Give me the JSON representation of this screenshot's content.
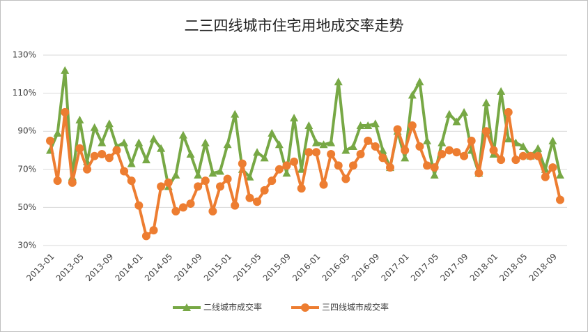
{
  "chart_data": {
    "type": "line",
    "title": "二三四线城市住宅用地成交率走势",
    "categories": [
      "2013-01",
      null,
      null,
      null,
      "2013-05",
      null,
      null,
      null,
      "2013-09",
      null,
      null,
      null,
      "2014-01",
      null,
      null,
      null,
      "2014-05",
      null,
      null,
      null,
      "2014-09",
      null,
      null,
      null,
      "2015-01",
      null,
      null,
      null,
      "2015-05",
      null,
      null,
      null,
      "2015-09",
      null,
      null,
      null,
      "2016-01",
      null,
      null,
      null,
      "2016-05",
      null,
      null,
      null,
      "2016-09",
      null,
      null,
      null,
      "2017-01",
      null,
      null,
      null,
      "2017-05",
      null,
      null,
      null,
      "2017-09",
      null,
      null,
      null,
      "2018-01",
      null,
      null,
      null,
      "2018-05",
      null,
      null,
      null,
      "2018-09",
      null
    ],
    "series": [
      {
        "name": "二线城市成交率",
        "color": "#77a845",
        "marker": "triangle",
        "values": [
          80,
          89,
          122,
          66,
          96,
          74,
          92,
          84,
          94,
          82,
          84,
          73,
          84,
          75,
          86,
          81,
          61,
          67,
          88,
          78,
          67,
          84,
          68,
          69,
          83,
          99,
          70,
          66,
          79,
          76,
          89,
          83,
          68,
          97,
          70,
          93,
          84,
          83,
          84,
          116,
          80,
          82,
          93,
          93,
          94,
          80,
          71,
          90,
          76,
          109,
          116,
          85,
          67,
          84,
          99,
          95,
          100,
          80,
          68,
          105,
          78,
          111,
          86,
          84,
          82,
          77,
          81,
          70,
          85,
          67
        ]
      },
      {
        "name": "三四线城市成交率",
        "color": "#ed7d31",
        "marker": "circle",
        "values": [
          85,
          64,
          100,
          63,
          81,
          70,
          77,
          78,
          76,
          80,
          69,
          64,
          51,
          35,
          38,
          61,
          63,
          48,
          50,
          52,
          61,
          64,
          48,
          61,
          65,
          51,
          73,
          55,
          53,
          59,
          64,
          70,
          72,
          74,
          60,
          79,
          79,
          62,
          78,
          72,
          65,
          72,
          78,
          85,
          82,
          76,
          71,
          91,
          80,
          93,
          82,
          72,
          71,
          78,
          80,
          79,
          77,
          85,
          68,
          90,
          80,
          75,
          100,
          75,
          77,
          77,
          77,
          66,
          71,
          54
        ]
      }
    ],
    "ylim": [
      30,
      130
    ],
    "yticks": [
      {
        "value": 30,
        "label": "30%"
      },
      {
        "value": 50,
        "label": "50%"
      },
      {
        "value": 70,
        "label": "70%"
      },
      {
        "value": 90,
        "label": "90%"
      },
      {
        "value": 110,
        "label": "110%"
      },
      {
        "value": 130,
        "label": "130%"
      }
    ],
    "grid": true,
    "legend": "bottom"
  }
}
